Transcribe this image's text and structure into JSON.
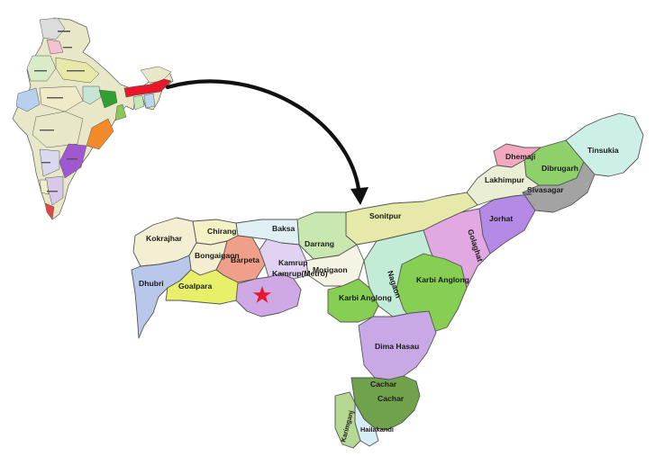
{
  "map": {
    "colors": {
      "assam_highlight": "#e8182a",
      "study_site_star": "#e8182a",
      "arrow": "#111111"
    },
    "districts": [
      {
        "id": "kokrajhar",
        "label": "Kokrajhar",
        "color": "#f2efd2"
      },
      {
        "id": "chirang",
        "label": "Chirang",
        "color": "#f4f1c6"
      },
      {
        "id": "baksa",
        "label": "Baksa",
        "color": "#dff0f4"
      },
      {
        "id": "darrang",
        "label": "Darrang",
        "color": "#c9e8b0"
      },
      {
        "id": "sonitpur",
        "label": "Sonitpur",
        "color": "#e6e9a8"
      },
      {
        "id": "bongaigaon",
        "label": "Bongaigaon",
        "color": "#f3eed0"
      },
      {
        "id": "barpeta",
        "label": "Barpeta",
        "color": "#f0a08a"
      },
      {
        "id": "kamrup",
        "label": "Kamrup",
        "color": "#cfa8e6"
      },
      {
        "id": "kamrup_metro",
        "label": "Kamrup(Metro)",
        "color": "#e2d2f2"
      },
      {
        "id": "morigaon",
        "label": "Morigaon",
        "color": "#f4f3e4"
      },
      {
        "id": "dhubri",
        "label": "Dhubri",
        "color": "#b9c7ea"
      },
      {
        "id": "goalpara",
        "label": "Goalpara",
        "color": "#e8f06a"
      },
      {
        "id": "nagaon",
        "label": "Nagaon",
        "color": "#c3ecd6"
      },
      {
        "id": "karbi_anglong",
        "label": "Karbi Anglong",
        "color": "#86cf52"
      },
      {
        "id": "karbi_anglong_2",
        "label": "Karbi Anglong",
        "color": "#86cf52"
      },
      {
        "id": "golaghat",
        "label": "Golaghat",
        "color": "#e2a8e2"
      },
      {
        "id": "jorhat",
        "label": "Jorhat",
        "color": "#b48ae6"
      },
      {
        "id": "sivasagar",
        "label": "Sivasagar",
        "color": "#a3a3a3"
      },
      {
        "id": "lakhimpur",
        "label": "Lakhimpur",
        "color": "#e9eed5"
      },
      {
        "id": "dhemaji",
        "label": "Dhemaji",
        "color": "#f3a8c0"
      },
      {
        "id": "dibrugarh",
        "label": "Dibrugarh",
        "color": "#8ed06a"
      },
      {
        "id": "tinsukia",
        "label": "Tinsukia",
        "color": "#ccefe8"
      },
      {
        "id": "dima_hasau",
        "label": "Dima Hasau",
        "color": "#c9a8e6"
      },
      {
        "id": "cachar",
        "label": "Cachar",
        "color": "#6fa24a"
      },
      {
        "id": "cachar_2",
        "label": "Cachar",
        "color": "#6fa24a"
      },
      {
        "id": "karimganj",
        "label": "Karimganj",
        "color": "#b5d892"
      },
      {
        "id": "hailakandi",
        "label": "Hailakandi",
        "color": "#d8eef6"
      }
    ]
  }
}
